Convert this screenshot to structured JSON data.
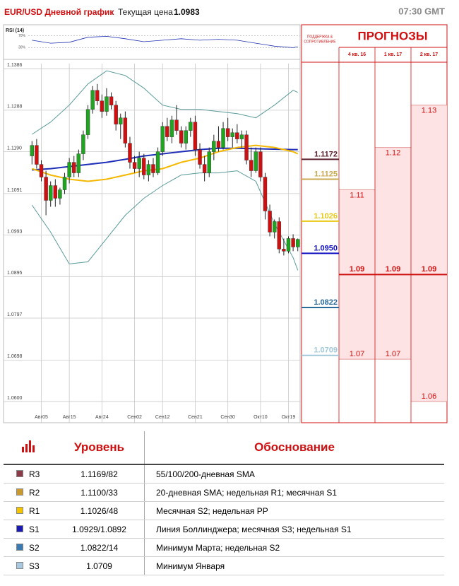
{
  "header": {
    "title": "EUR/USD Дневной график",
    "price_label": "Текущая цена",
    "price": "1.0983",
    "time": "07:30 GMT"
  },
  "chart_data": {
    "type": "candlestick",
    "categories": [
      null,
      null,
      "Авг05",
      null,
      null,
      null,
      null,
      null,
      "Авг15",
      null,
      null,
      null,
      null,
      null,
      null,
      "Авг24",
      null,
      null,
      null,
      null,
      null,
      null,
      "Сен02",
      null,
      null,
      null,
      null,
      null,
      "Сен12",
      null,
      null,
      null,
      null,
      null,
      null,
      "Сен21",
      null,
      null,
      null,
      null,
      null,
      null,
      "Сен30",
      null,
      null,
      null,
      null,
      null,
      null,
      "Окт10",
      null,
      null,
      null,
      null,
      null,
      "Окт19",
      null,
      null
    ],
    "open": [
      1.118,
      1.1205,
      1.116,
      1.113,
      1.1075,
      1.111,
      1.108,
      1.11,
      1.113,
      1.1165,
      1.114,
      1.1185,
      1.123,
      1.129,
      1.1335,
      1.131,
      1.1285,
      1.132,
      1.13,
      1.1255,
      1.127,
      1.121,
      1.1165,
      1.115,
      1.1175,
      1.1135,
      1.116,
      1.114,
      1.119,
      1.125,
      1.1225,
      1.1265,
      1.124,
      1.121,
      1.124,
      1.126,
      1.1195,
      1.116,
      1.114,
      1.119,
      1.1215,
      1.12,
      1.1245,
      1.1225,
      1.1235,
      1.122,
      1.123,
      1.117,
      1.1145,
      1.119,
      1.113,
      1.105,
      1.1,
      1.1025,
      1.096,
      1.0955,
      1.0985,
      1.0965
    ],
    "high": [
      1.1215,
      1.122,
      1.117,
      1.1145,
      1.112,
      1.1125,
      1.1105,
      1.114,
      1.1175,
      1.118,
      1.1195,
      1.124,
      1.13,
      1.1345,
      1.135,
      1.1325,
      1.134,
      1.133,
      1.131,
      1.128,
      1.1285,
      1.1225,
      1.118,
      1.119,
      1.1185,
      1.117,
      1.1175,
      1.12,
      1.126,
      1.127,
      1.1275,
      1.13,
      1.125,
      1.125,
      1.127,
      1.1275,
      1.121,
      1.118,
      1.12,
      1.123,
      1.125,
      1.126,
      1.127,
      1.1245,
      1.1255,
      1.124,
      1.124,
      1.12,
      1.12,
      1.12,
      1.114,
      1.1065,
      1.103,
      1.1035,
      1.0985,
      1.099,
      1.0995,
      1.0985
    ],
    "low": [
      1.116,
      1.115,
      1.112,
      1.104,
      1.106,
      1.106,
      1.1065,
      1.109,
      1.1115,
      1.113,
      1.113,
      1.117,
      1.122,
      1.128,
      1.13,
      1.127,
      1.1275,
      1.129,
      1.124,
      1.122,
      1.12,
      1.115,
      1.114,
      1.113,
      1.1125,
      1.112,
      1.113,
      1.1135,
      1.118,
      1.1215,
      1.121,
      1.123,
      1.12,
      1.1195,
      1.1225,
      1.118,
      1.115,
      1.112,
      1.113,
      1.117,
      1.119,
      1.1195,
      1.1215,
      1.12,
      1.121,
      1.12,
      1.116,
      1.113,
      1.114,
      1.112,
      1.103,
      1.099,
      1.0985,
      1.095,
      1.0945,
      1.095,
      1.0955,
      1.0955
    ],
    "close": [
      1.1205,
      1.116,
      1.113,
      1.1075,
      1.111,
      1.108,
      1.11,
      1.113,
      1.1165,
      1.114,
      1.1185,
      1.123,
      1.129,
      1.1335,
      1.131,
      1.1285,
      1.132,
      1.13,
      1.1255,
      1.127,
      1.121,
      1.1165,
      1.115,
      1.1175,
      1.1135,
      1.116,
      1.114,
      1.119,
      1.125,
      1.1225,
      1.1265,
      1.124,
      1.121,
      1.124,
      1.126,
      1.1195,
      1.116,
      1.114,
      1.119,
      1.1215,
      1.12,
      1.1245,
      1.1225,
      1.1235,
      1.122,
      1.123,
      1.117,
      1.1145,
      1.119,
      1.113,
      1.105,
      1.1,
      1.1025,
      1.096,
      1.0955,
      1.0985,
      1.0965,
      1.0983
    ],
    "up_color": "#1fa51f",
    "down_color": "#d01010",
    "ylim": [
      1.055,
      1.1398
    ],
    "yticks": [
      {
        "value": 1.1386,
        "label": "1.1386"
      },
      {
        "value": 1.1288,
        "label": "1.1288"
      },
      {
        "value": 1.119,
        "label": "1.1190"
      },
      {
        "value": 1.1091,
        "label": "1.1091"
      },
      {
        "value": 1.0993,
        "label": "1.0993"
      },
      {
        "value": 1.0895,
        "label": "1.0895"
      },
      {
        "value": 1.0797,
        "label": "1.0797"
      },
      {
        "value": 1.0698,
        "label": "1.0698"
      },
      {
        "value": 1.06,
        "label": "1.0600"
      }
    ],
    "grid": true,
    "lines": [
      {
        "color": "#5a9a9a",
        "x": [
          0,
          4,
          8,
          12,
          16,
          20,
          24,
          28,
          32,
          36,
          40,
          44,
          48,
          52,
          56,
          57
        ],
        "values": [
          1.1231,
          1.126,
          1.13,
          1.135,
          1.1381,
          1.137,
          1.134,
          1.13,
          1.129,
          1.129,
          1.1285,
          1.128,
          1.127,
          1.13,
          1.1335,
          1.133
        ]
      },
      {
        "color": "#5a9a9a",
        "x": [
          0,
          4,
          8,
          12,
          16,
          20,
          24,
          28,
          32,
          36,
          40,
          44,
          48,
          52,
          56,
          57
        ],
        "values": [
          1.1064,
          1.1,
          1.0925,
          1.093,
          1.0985,
          1.104,
          1.108,
          1.111,
          1.1135,
          1.114,
          1.114,
          1.1145,
          1.112,
          1.102,
          1.094,
          1.091
        ]
      },
      {
        "color": "#1f2fb8",
        "x": [
          0,
          4,
          8,
          12,
          16,
          20,
          24,
          28,
          32,
          36,
          40,
          44,
          48,
          52,
          56,
          57
        ],
        "values": [
          1.1147,
          1.115,
          1.1155,
          1.116,
          1.1165,
          1.1172,
          1.118,
          1.1185,
          1.119,
          1.1195,
          1.1198,
          1.1198,
          1.1197,
          1.1196,
          1.1195,
          1.1195
        ]
      },
      {
        "color": "#f5b800",
        "x": [
          0,
          4,
          8,
          12,
          16,
          20,
          24,
          28,
          32,
          36,
          40,
          44,
          48,
          52,
          56,
          57
        ],
        "values": [
          1.115,
          1.1135,
          1.1125,
          1.112,
          1.1125,
          1.1135,
          1.1145,
          1.115,
          1.1165,
          1.1175,
          1.119,
          1.12,
          1.1205,
          1.12,
          1.119,
          1.1185
        ]
      }
    ],
    "rsi": {
      "title": "RSI (14)",
      "color": "#2030b0",
      "ylim": [
        0,
        100
      ],
      "yticks": [
        {
          "value": 70,
          "label": "70%"
        },
        {
          "value": 30,
          "label": "30%"
        }
      ],
      "x": [
        0,
        4,
        8,
        12,
        16,
        20,
        24,
        28,
        32,
        36,
        40,
        44,
        48,
        52,
        56,
        57
      ],
      "values": [
        55,
        45,
        48,
        65,
        68,
        60,
        50,
        55,
        60,
        55,
        58,
        55,
        45,
        35,
        30,
        33
      ]
    },
    "levels": [
      {
        "value": 1.1172,
        "label": "1.1172",
        "color": "#5c1f2e"
      },
      {
        "value": 1.1125,
        "label": "1.1125",
        "color": "#c8a850"
      },
      {
        "value": 1.1026,
        "label": "1.1026",
        "color": "#e8c810"
      },
      {
        "value": 1.095,
        "label": "1.0950",
        "color": "#1010c0"
      },
      {
        "value": 1.0822,
        "label": "1.0822",
        "color": "#2a6a9a"
      },
      {
        "value": 1.0709,
        "label": "1.0709",
        "color": "#a0c8d8"
      }
    ],
    "forecasts": {
      "sr_title": [
        "ПОДДЕРЖКА &",
        "СОПРОТИВЛЕНИЕ"
      ],
      "title": "ПРОГНОЗЫ",
      "columns": [
        "4 кв. 16",
        "1 кв. 17",
        "2 кв. 17"
      ],
      "high": [
        1.11,
        1.12,
        1.13
      ],
      "mid": [
        1.09,
        1.09,
        1.09
      ],
      "low": [
        1.07,
        1.07,
        1.06
      ]
    }
  },
  "table": {
    "headers": [
      "Уровень",
      "Обоснование"
    ],
    "rows": [
      {
        "name": "R3",
        "color": "#8b3a4a",
        "level": "1.1169/82",
        "reason": "55/100/200-дневная SMA"
      },
      {
        "name": "R2",
        "color": "#c89a30",
        "level": "1.1100/33",
        "reason": "20-дневная SMA; недельная R1; месячная S1"
      },
      {
        "name": "R1",
        "color": "#f5c400",
        "level": "1.1026/48",
        "reason": "Месячная S2; недельная PP"
      },
      {
        "name": "S1",
        "color": "#1a1ab0",
        "level": "1.0929/1.0892",
        "reason": "Линия Боллинджера; месячная S3; недельная S1"
      },
      {
        "name": "S2",
        "color": "#3a7ab0",
        "level": "1.0822/14",
        "reason": "Минимум Марта; недельная S2"
      },
      {
        "name": "S3",
        "color": "#a8c8e0",
        "level": "1.0709",
        "reason": "Минимум Января"
      }
    ]
  }
}
